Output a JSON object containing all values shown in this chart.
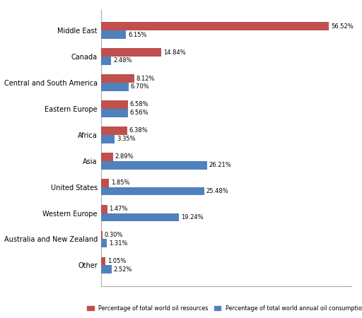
{
  "categories": [
    "Middle East",
    "Canada",
    "Central and South America",
    "Eastern Europe",
    "Africa",
    "Asia",
    "United States",
    "Western Europe",
    "Australia and New Zealand",
    "Other"
  ],
  "resources": [
    56.52,
    14.84,
    8.12,
    6.58,
    6.38,
    2.89,
    1.85,
    1.47,
    0.3,
    1.05
  ],
  "consumption": [
    6.15,
    2.48,
    6.7,
    6.56,
    3.35,
    26.21,
    25.48,
    19.24,
    1.31,
    2.52
  ],
  "resource_color": "#C0504D",
  "consumption_color": "#4F81BD",
  "bar_height": 0.32,
  "xlim": [
    0,
    62
  ],
  "legend_resource": "Percentage of total world oil resources",
  "legend_consumption": "Percentage of total world annual oil consumption",
  "resource_labels": [
    "56.52%",
    "14.84%",
    "8.12%",
    "6.58%",
    "6.38%",
    "2.89%",
    "1.85%",
    "1.47%",
    "0.30%",
    "1.05%"
  ],
  "consumption_labels": [
    "6.15%",
    "2.48%",
    "6.70%",
    "6.56%",
    "3.35%",
    "26.21%",
    "25.48%",
    "19.24%",
    "1.31%",
    "2.52%"
  ],
  "bg_color": "#F2F2F2"
}
